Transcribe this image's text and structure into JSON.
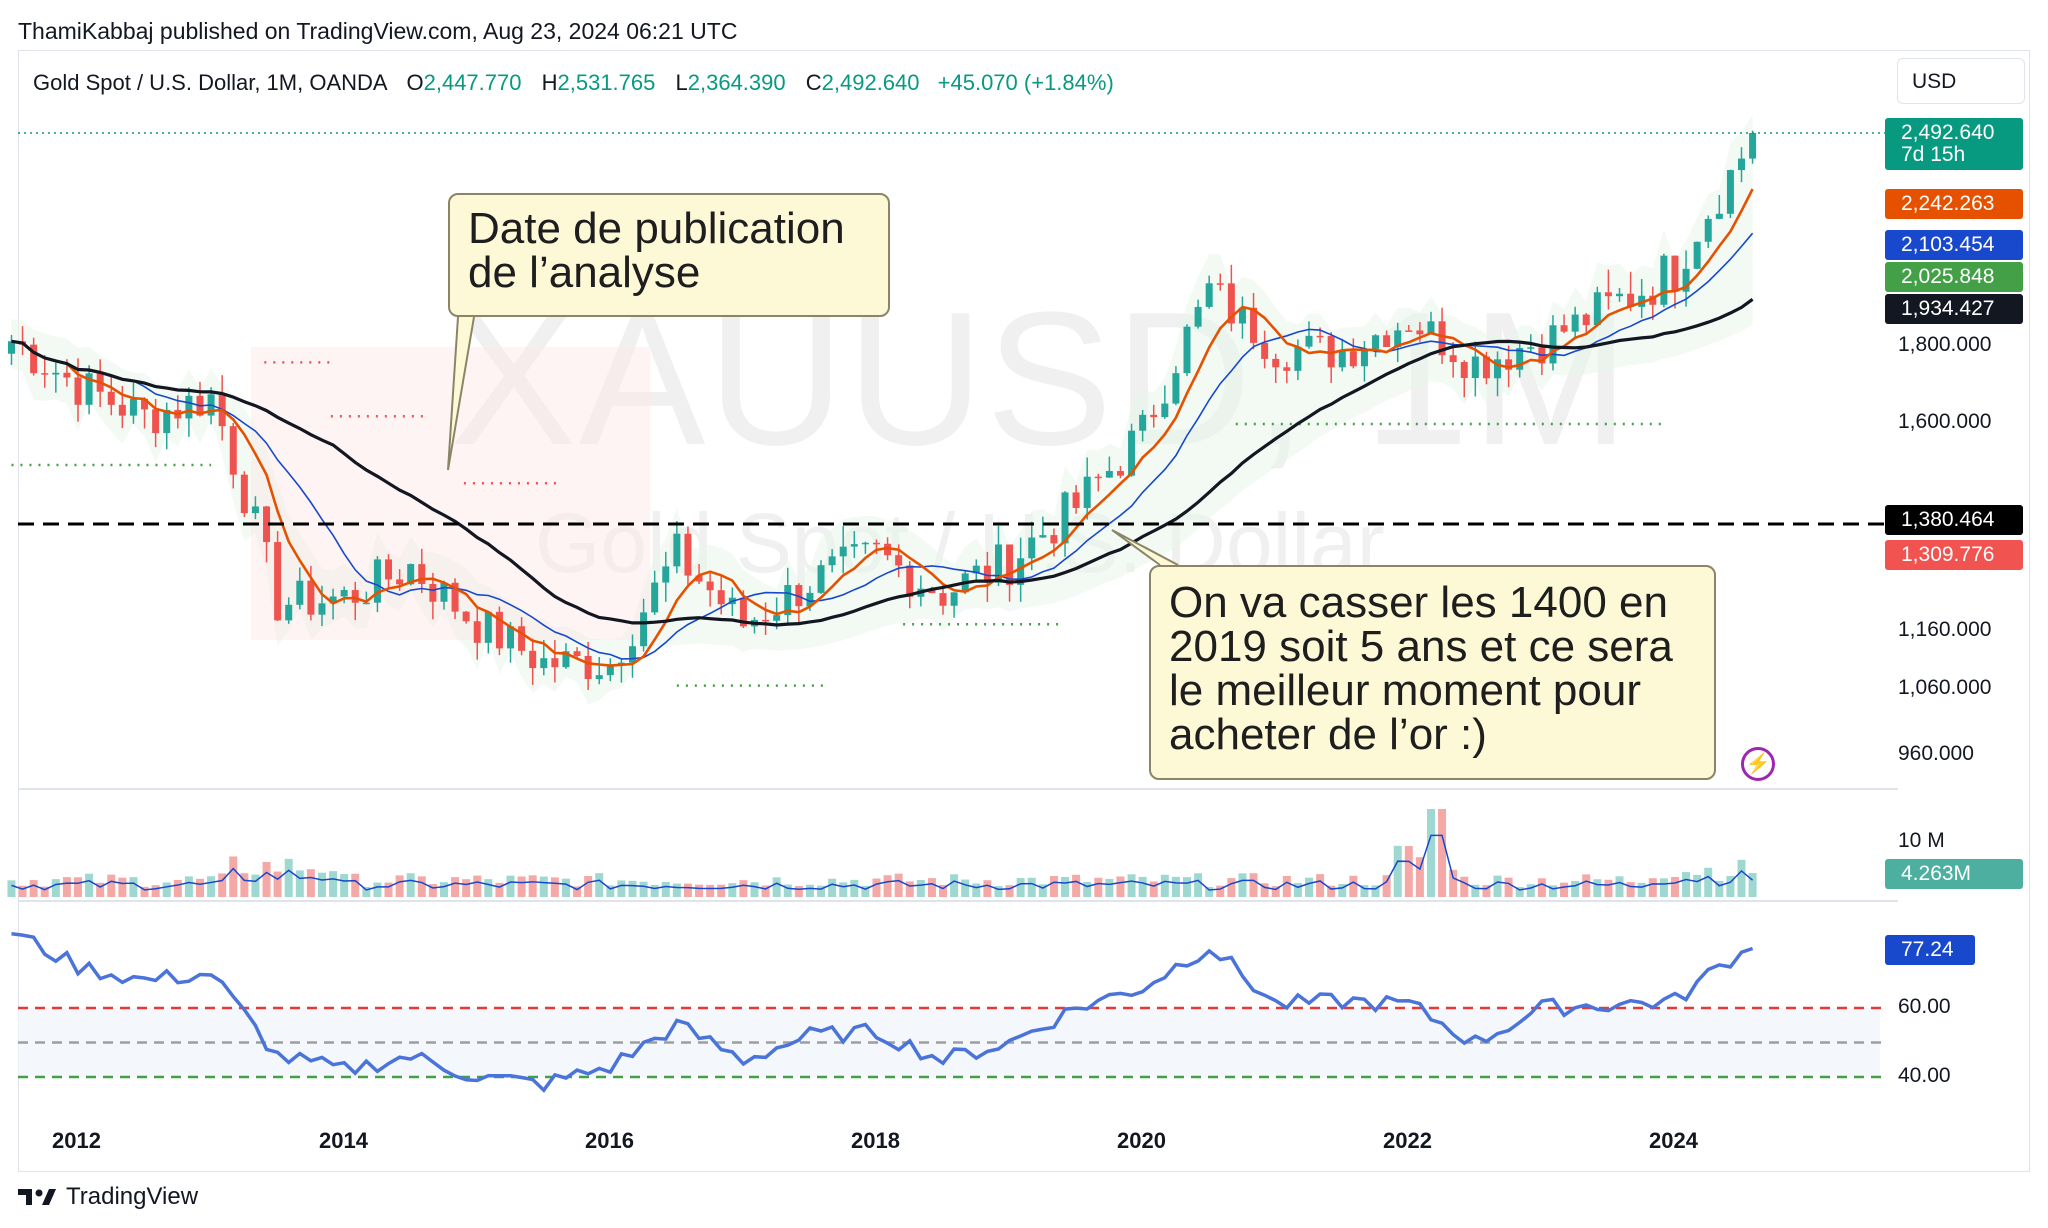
{
  "header": {
    "publish": "ThamiKabbaj published on TradingView.com, Aug 23, 2024 06:21 UTC"
  },
  "legend": {
    "symbol": "Gold Spot / U.S. Dollar, 1M, OANDA",
    "o_label": "O",
    "o": "2,447.770",
    "h_label": "H",
    "h": "2,531.765",
    "l_label": "L",
    "l": "2,364.390",
    "c_label": "C",
    "c": "2,492.640",
    "change": "+45.070 (+1.84%)"
  },
  "currency_button": "USD",
  "watermark": {
    "ticker": "XAUUSD, 1M",
    "name": "Gold Spot / U.S. Dollar"
  },
  "annotations": {
    "callout1": {
      "line1": "Date de publication",
      "line2": "de l’analyse"
    },
    "callout2": {
      "line1": "On va casser les 1400 en",
      "line2": "2019 soit 5 ans et ce sera",
      "line3": "le meilleur moment pour",
      "line4": "acheter de l’or :)"
    }
  },
  "price_axis": [
    "1,800.000",
    "1,600.000",
    "1,160.000",
    "1,060.000",
    "960.000"
  ],
  "price_tags": [
    {
      "line1": "2,492.640",
      "line2": "7d 15h",
      "color": "#089981"
    },
    {
      "line1": "2,242.263",
      "color": "#e65100"
    },
    {
      "line1": "2,103.454",
      "color": "#1848cc"
    },
    {
      "line1": "2,025.848",
      "color": "#43a047"
    },
    {
      "line1": "1,934.427",
      "color": "#131722"
    },
    {
      "line1": "1,380.464",
      "color": "#000000"
    },
    {
      "line1": "1,309.776",
      "color": "#f05350"
    }
  ],
  "volume_axis": {
    "label": "10 M",
    "tag": "4.263M",
    "tag_color": "#4caf9f"
  },
  "rsi_axis": {
    "tag": "77.24",
    "tag_color": "#1848cc",
    "levels": [
      "60.00",
      "40.00"
    ]
  },
  "x_axis": [
    "2012",
    "2014",
    "2016",
    "2018",
    "2020",
    "2022",
    "2024"
  ],
  "footer": {
    "brand": "TradingView"
  },
  "chart_data": {
    "type": "candlestick",
    "interval": "1M",
    "x": [
      2011.5,
      2012.0,
      2012.5,
      2013.0,
      2013.5,
      2014.0,
      2014.5,
      2015.0,
      2015.5,
      2016.0,
      2016.5,
      2017.0,
      2017.5,
      2018.0,
      2018.5,
      2019.0,
      2019.5,
      2020.0,
      2020.5,
      2021.0,
      2021.5,
      2022.0,
      2022.5,
      2023.0,
      2023.5,
      2024.0,
      2024.4,
      2024.6
    ],
    "close": [
      1820,
      1700,
      1620,
      1670,
      1230,
      1240,
      1300,
      1190,
      1120,
      1120,
      1320,
      1190,
      1270,
      1320,
      1250,
      1310,
      1420,
      1580,
      1970,
      1800,
      1790,
      1890,
      1760,
      1820,
      1930,
      2030,
      2330,
      2492.64
    ],
    "horizontal_line": 1380.464,
    "ylim": [
      900,
      2560
    ],
    "volume_scale": "10 M",
    "rsi": {
      "values": [
        82,
        72,
        68,
        70,
        46,
        42,
        46,
        40,
        38,
        43,
        55,
        45,
        52,
        53,
        45,
        50,
        60,
        66,
        78,
        61,
        62,
        61,
        50,
        60,
        61,
        62,
        74,
        77.24
      ],
      "levels": [
        60,
        40
      ]
    }
  }
}
